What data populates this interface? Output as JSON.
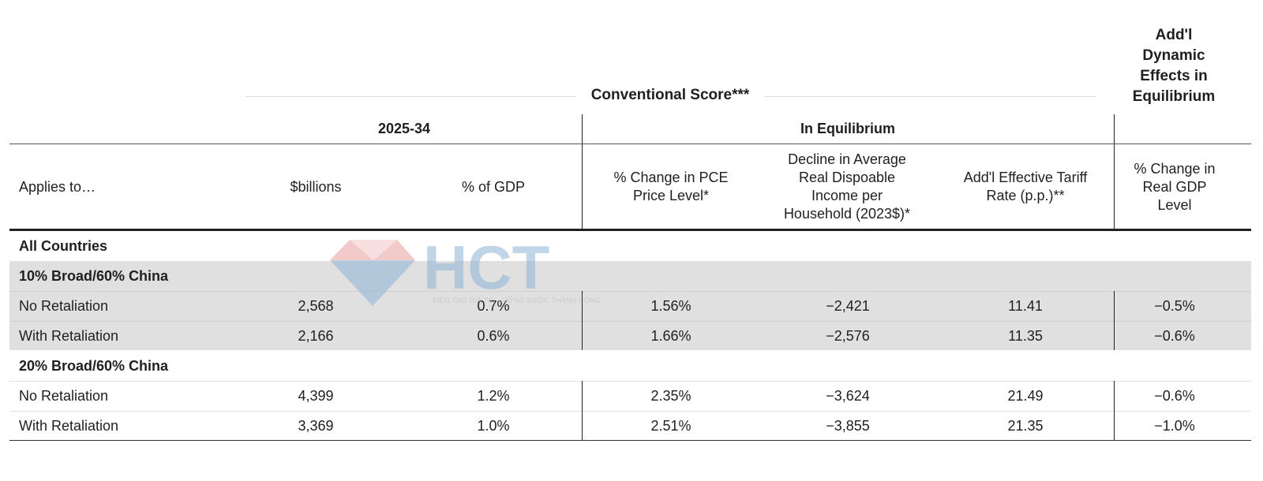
{
  "header": {
    "conventional_score": "Conventional Score***",
    "dynamic_effects": [
      "Add'l",
      "Dynamic",
      "Effects in",
      "Equilibrium"
    ],
    "period": "2025-34",
    "in_equilibrium": "In Equilibrium"
  },
  "columns": {
    "applies_to": "Applies to…",
    "billions": "$billions",
    "pct_gdp": "% of GDP",
    "pce": [
      "% Change in PCE",
      "Price Level*"
    ],
    "income": [
      "Decline in Average",
      "Real Dispoable",
      "Income per",
      "Household (2023$)*"
    ],
    "tariff": [
      "Add'l Effective Tariff",
      "Rate (p.p.)**"
    ],
    "real_gdp": [
      "% Change in",
      "Real GDP",
      "Level"
    ]
  },
  "sections": [
    {
      "label": "All Countries"
    },
    {
      "label": "10% Broad/60% China",
      "rows": [
        {
          "label": "No Retaliation",
          "billions": "2,568",
          "pct_gdp": "0.7%",
          "pce": "1.56%",
          "income": "−2,421",
          "tariff": "11.41",
          "real_gdp": "−0.5%"
        },
        {
          "label": "With Retaliation",
          "billions": "2,166",
          "pct_gdp": "0.6%",
          "pce": "1.66%",
          "income": "−2,576",
          "tariff": "11.35",
          "real_gdp": "−0.6%"
        }
      ]
    },
    {
      "label": "20% Broad/60% China",
      "rows": [
        {
          "label": "No Retaliation",
          "billions": "4,399",
          "pct_gdp": "1.2%",
          "pce": "2.35%",
          "income": "−3,624",
          "tariff": "21.49",
          "real_gdp": "−0.6%"
        },
        {
          "label": "With Retaliation",
          "billions": "3,369",
          "pct_gdp": "1.0%",
          "pce": "2.51%",
          "income": "−3,855",
          "tariff": "21.35",
          "real_gdp": "−1.0%"
        }
      ]
    }
  ],
  "watermark": {
    "logo_text": "HCT",
    "tagline": "KIẾN TẠO GIÁ TRỊ · VỮNG BƯỚC THÀNH CÔNG"
  },
  "colors": {
    "band": "#e0e0e0",
    "rule": "#222222",
    "watermark_blue": "#8fb4d6",
    "watermark_red": "#e9a0a0"
  }
}
